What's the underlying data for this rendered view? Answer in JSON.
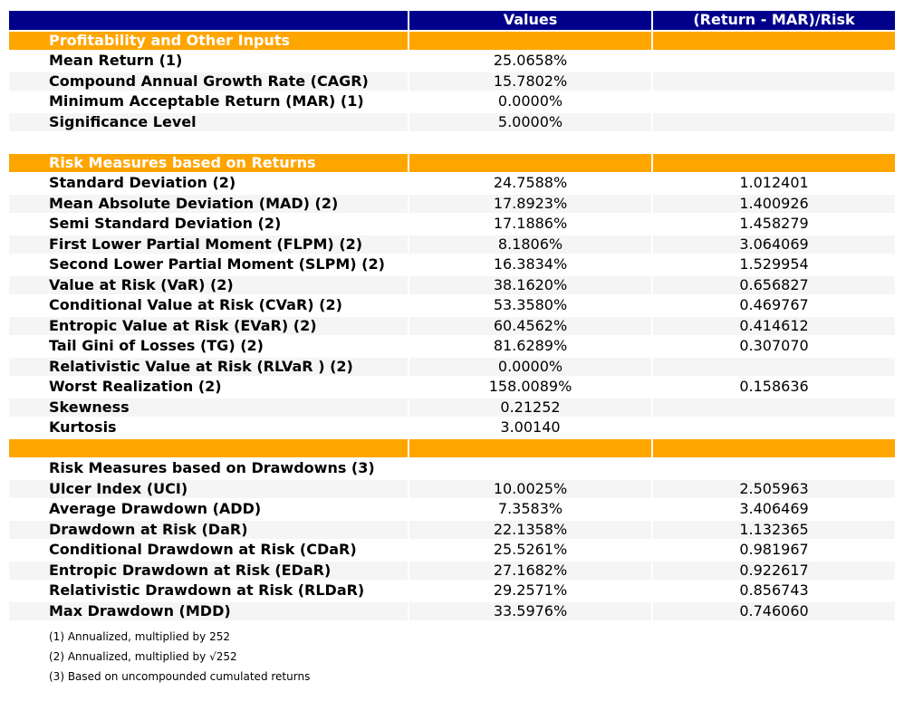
{
  "chart_data": {
    "type": "table",
    "columns": [
      "",
      "Values",
      "(Return - MAR)/Risk"
    ],
    "rows": [
      {
        "type": "section",
        "label": "Profitability and Other Inputs",
        "value": "",
        "ratio": ""
      },
      {
        "type": "data",
        "label": "Mean Return (1)",
        "value": "25.0658%",
        "ratio": ""
      },
      {
        "type": "data",
        "label": "Compound Annual Growth Rate (CAGR)",
        "value": "15.7802%",
        "ratio": ""
      },
      {
        "type": "data",
        "label": "Minimum Acceptable Return (MAR) (1)",
        "value": "0.0000%",
        "ratio": ""
      },
      {
        "type": "data",
        "label": "Significance Level",
        "value": "5.0000%",
        "ratio": ""
      },
      {
        "type": "blank",
        "label": "",
        "value": "",
        "ratio": ""
      },
      {
        "type": "section",
        "label": "Risk Measures based on Returns",
        "value": "",
        "ratio": ""
      },
      {
        "type": "data",
        "label": "Standard Deviation (2)",
        "value": "24.7588%",
        "ratio": "1.012401"
      },
      {
        "type": "data",
        "label": "Mean Absolute Deviation (MAD) (2)",
        "value": "17.8923%",
        "ratio": "1.400926"
      },
      {
        "type": "data",
        "label": "Semi Standard Deviation (2)",
        "value": "17.1886%",
        "ratio": "1.458279"
      },
      {
        "type": "data",
        "label": "First Lower Partial Moment (FLPM) (2)",
        "value": "8.1806%",
        "ratio": "3.064069"
      },
      {
        "type": "data",
        "label": "Second Lower Partial Moment (SLPM) (2)",
        "value": "16.3834%",
        "ratio": "1.529954"
      },
      {
        "type": "data",
        "label": "Value at Risk (VaR) (2)",
        "value": "38.1620%",
        "ratio": "0.656827"
      },
      {
        "type": "data",
        "label": "Conditional Value at Risk (CVaR) (2)",
        "value": "53.3580%",
        "ratio": "0.469767"
      },
      {
        "type": "data",
        "label": "Entropic Value at Risk (EVaR) (2)",
        "value": "60.4562%",
        "ratio": "0.414612"
      },
      {
        "type": "data",
        "label": "Tail Gini of Losses (TG) (2)",
        "value": "81.6289%",
        "ratio": "0.307070"
      },
      {
        "type": "data",
        "label": "Relativistic Value at Risk (RLVaR ) (2)",
        "value": "0.0000%",
        "ratio": ""
      },
      {
        "type": "data",
        "label": "Worst Realization (2)",
        "value": "158.0089%",
        "ratio": "0.158636"
      },
      {
        "type": "data",
        "label": "Skewness",
        "value": "0.21252",
        "ratio": ""
      },
      {
        "type": "data",
        "label": "Kurtosis",
        "value": "3.00140",
        "ratio": ""
      },
      {
        "type": "section",
        "label": "",
        "value": "",
        "ratio": ""
      },
      {
        "type": "plainhead",
        "label": "Risk Measures based on Drawdowns (3)",
        "value": "",
        "ratio": ""
      },
      {
        "type": "data",
        "label": "Ulcer Index (UCI)",
        "value": "10.0025%",
        "ratio": "2.505963"
      },
      {
        "type": "data",
        "label": "Average Drawdown (ADD)",
        "value": "7.3583%",
        "ratio": "3.406469"
      },
      {
        "type": "data",
        "label": "Drawdown at Risk (DaR)",
        "value": "22.1358%",
        "ratio": "1.132365"
      },
      {
        "type": "data",
        "label": "Conditional Drawdown at Risk (CDaR)",
        "value": "25.5261%",
        "ratio": "0.981967"
      },
      {
        "type": "data",
        "label": "Entropic Drawdown at Risk (EDaR)",
        "value": "27.1682%",
        "ratio": "0.922617"
      },
      {
        "type": "data",
        "label": "Relativistic Drawdown at Risk (RLDaR)",
        "value": "29.2571%",
        "ratio": "0.856743"
      },
      {
        "type": "data",
        "label": "Max Drawdown (MDD)",
        "value": "33.5976%",
        "ratio": "0.746060"
      }
    ],
    "notes": [
      "(1) Annualized, multiplied by 252",
      "(2) Annualized, multiplied by √252",
      "(3) Based on uncompounded cumulated returns"
    ]
  },
  "colors": {
    "header_bg": "#00008B",
    "header_text": "#FFFFFF",
    "section_bg": "#FFA500",
    "section_text": "#FFFFFF",
    "stripe_bg": "#F5F5F5",
    "body_text": "#000000"
  }
}
